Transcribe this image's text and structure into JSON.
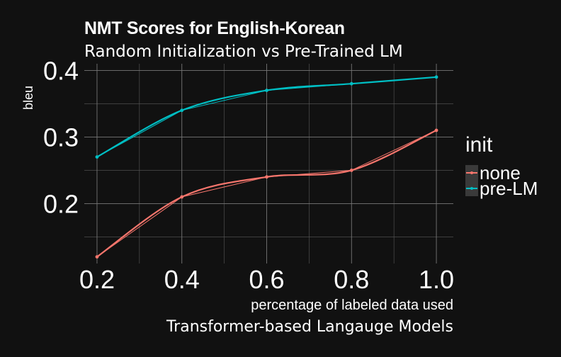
{
  "chart_data": {
    "type": "line",
    "title": "NMT Scores for English-Korean",
    "subtitle": "Random Initialization vs Pre-Trained LM",
    "xlabel": "percentage of labeled data used",
    "ylabel": "bleu",
    "caption": "Transformer-based Langauge Models",
    "x": [
      0.2,
      0.4,
      0.6,
      0.8,
      1.0
    ],
    "x_ticks": [
      "0.2",
      "0.4",
      "0.6",
      "0.8",
      "1.0"
    ],
    "y_ticks": [
      "0.2",
      "0.3",
      "0.4"
    ],
    "xlim": [
      0.17,
      1.04
    ],
    "ylim": [
      0.11,
      0.41
    ],
    "grid": true,
    "legend": {
      "title": "init",
      "placement": "right"
    },
    "series": [
      {
        "name": "none",
        "color": "#F8766D",
        "values": [
          0.12,
          0.21,
          0.24,
          0.25,
          0.31
        ]
      },
      {
        "name": "pre-LM",
        "color": "#00BFC4",
        "values": [
          0.27,
          0.34,
          0.37,
          0.38,
          0.39
        ]
      }
    ]
  }
}
